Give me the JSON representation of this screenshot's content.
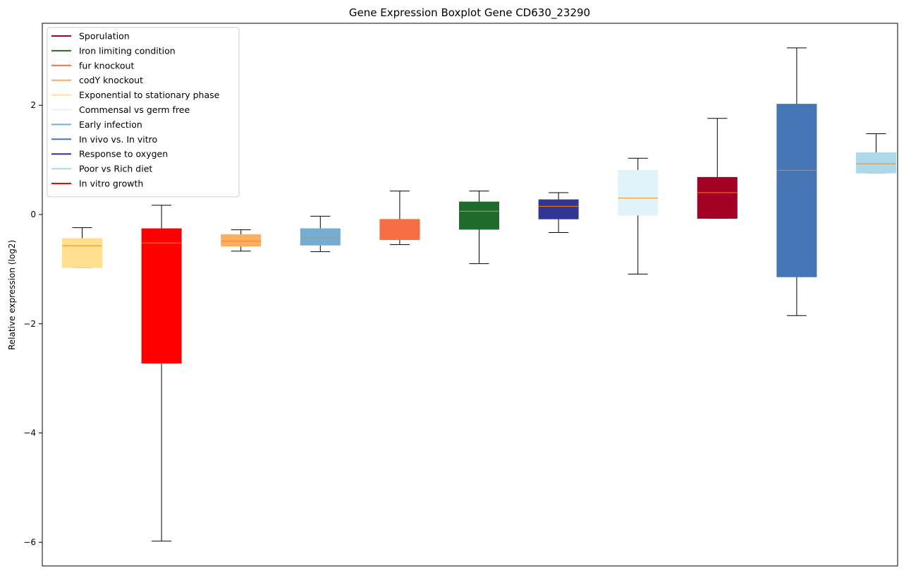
{
  "chart_data": {
    "type": "boxplot",
    "title": "Gene Expression Boxplot Gene CD630_23290",
    "xlabel": "",
    "ylabel": "Relative expression (log2)",
    "ylim": [
      -6.4,
      3.5
    ],
    "yticks": [
      2,
      0,
      -2,
      -4,
      -6
    ],
    "ytick_labels": [
      "2",
      "0",
      "−2",
      "−4",
      "−6"
    ],
    "legend_position": "top-left",
    "legend": [
      {
        "label": "Sporulation",
        "color": "#a50026"
      },
      {
        "label": "Iron limiting condition",
        "color": "#1e6b2c"
      },
      {
        "label": "fur knockout",
        "color": "#f46d43"
      },
      {
        "label": "codY knockout",
        "color": "#fdae61"
      },
      {
        "label": "Exponential to stationary phase",
        "color": "#fee090"
      },
      {
        "label": "Commensal vs germ free",
        "color": "#e0f3f8"
      },
      {
        "label": "Early infection",
        "color": "#74add1"
      },
      {
        "label": "In vivo vs. In vitro",
        "color": "#4575b4"
      },
      {
        "label": "Response to oxygen",
        "color": "#313695"
      },
      {
        "label": "Poor vs Rich diet",
        "color": "#abd9e9"
      },
      {
        "label": "In vitro growth",
        "color": "#ff0000"
      }
    ],
    "boxes": [
      {
        "color": "#fee090",
        "whislo": -0.97,
        "q1": -0.97,
        "med": -0.57,
        "q3": -0.44,
        "whishi": -0.24
      },
      {
        "color": "#ff0000",
        "whislo": -5.98,
        "q1": -2.72,
        "med": -0.52,
        "q3": -0.26,
        "whishi": 0.17
      },
      {
        "color": "#fdae61",
        "whislo": -0.67,
        "q1": -0.58,
        "med": -0.49,
        "q3": -0.37,
        "whishi": -0.28
      },
      {
        "color": "#74add1",
        "whislo": -0.68,
        "q1": -0.56,
        "med": -0.43,
        "q3": -0.26,
        "whishi": -0.03
      },
      {
        "color": "#f46d43",
        "whislo": -0.55,
        "q1": -0.46,
        "med": -0.43,
        "q3": -0.09,
        "whishi": 0.43
      },
      {
        "color": "#1e6b2c",
        "whislo": -0.9,
        "q1": -0.27,
        "med": 0.06,
        "q3": 0.23,
        "whishi": 0.43
      },
      {
        "color": "#313695",
        "whislo": -0.33,
        "q1": -0.08,
        "med": 0.15,
        "q3": 0.27,
        "whishi": 0.4
      },
      {
        "color": "#e0f3f8",
        "whislo": -1.09,
        "q1": -0.01,
        "med": 0.3,
        "q3": 0.81,
        "whishi": 1.03
      },
      {
        "color": "#a50026",
        "whislo": -0.07,
        "q1": -0.07,
        "med": 0.4,
        "q3": 0.68,
        "whishi": 1.76
      },
      {
        "color": "#4575b4",
        "whislo": -1.85,
        "q1": -1.14,
        "med": 0.81,
        "q3": 2.02,
        "whishi": 3.05
      },
      {
        "color": "#abd9e9",
        "whislo": 0.76,
        "q1": 0.76,
        "med": 0.93,
        "q3": 1.13,
        "whishi": 1.48
      }
    ],
    "median_color": "#ff7f0e"
  }
}
